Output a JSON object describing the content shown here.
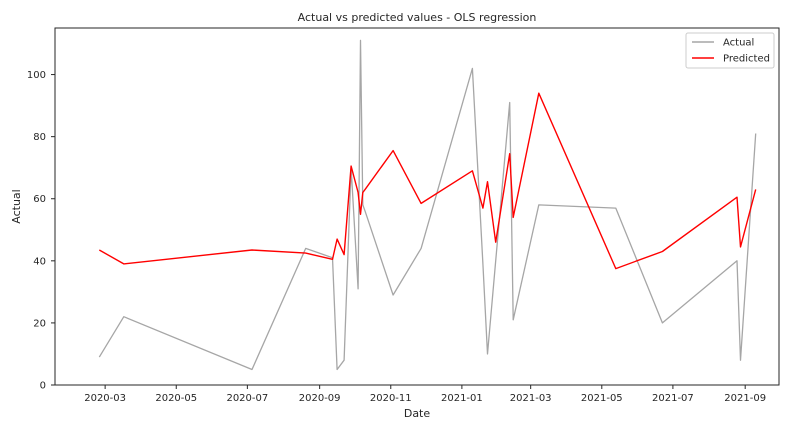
{
  "chart_data": {
    "type": "line",
    "title": "Actual vs predicted values - OLS regression",
    "xlabel": "Date",
    "ylabel": "Actual",
    "x_ticks": [
      "2020-03",
      "2020-05",
      "2020-07",
      "2020-09",
      "2020-11",
      "2021-01",
      "2021-03",
      "2021-05",
      "2021-07",
      "2021-09"
    ],
    "y_ticks": [
      0,
      20,
      40,
      60,
      80,
      100
    ],
    "xlim": [
      "2020-01-18",
      "2021-09-30"
    ],
    "ylim": [
      0,
      115
    ],
    "grid": false,
    "legend_position": "top-right",
    "colors": {
      "actual": "#a6a6a6",
      "predicted": "#ff0000"
    },
    "series": [
      {
        "name": "Actual",
        "x": [
          "2020-02-25",
          "2020-03-17",
          "2020-07-05",
          "2020-08-20",
          "2020-09-12",
          "2020-09-16",
          "2020-09-22",
          "2020-09-28",
          "2020-10-04",
          "2020-10-06",
          "2020-10-08",
          "2020-10-10",
          "2020-11-03",
          "2020-11-27",
          "2021-01-10",
          "2021-01-19",
          "2021-01-23",
          "2021-01-30",
          "2021-02-11",
          "2021-02-14",
          "2021-03-08",
          "2021-05-13",
          "2021-06-22",
          "2021-08-25",
          "2021-08-28",
          "2021-09-10"
        ],
        "values": [
          9,
          22,
          5,
          44,
          41,
          5,
          8,
          70,
          31,
          111,
          58,
          56,
          29,
          44,
          102,
          39,
          10,
          40,
          91,
          21,
          58,
          57,
          20,
          40,
          8,
          81
        ]
      },
      {
        "name": "Predicted",
        "x": [
          "2020-02-25",
          "2020-03-17",
          "2020-07-05",
          "2020-08-20",
          "2020-09-12",
          "2020-09-16",
          "2020-09-22",
          "2020-09-28",
          "2020-10-04",
          "2020-10-06",
          "2020-10-08",
          "2020-10-10",
          "2020-11-03",
          "2020-11-27",
          "2021-01-10",
          "2021-01-19",
          "2021-01-23",
          "2021-01-30",
          "2021-02-11",
          "2021-02-14",
          "2021-03-08",
          "2021-05-13",
          "2021-06-22",
          "2021-08-25",
          "2021-08-28",
          "2021-09-10"
        ],
        "values": [
          43.5,
          39,
          43.5,
          42.5,
          40.5,
          47,
          42,
          70.5,
          62,
          55,
          62,
          63,
          75.5,
          58.5,
          69,
          57,
          65.5,
          46,
          74.5,
          54,
          94,
          37.5,
          43,
          60.5,
          44.5,
          63
        ]
      }
    ]
  }
}
